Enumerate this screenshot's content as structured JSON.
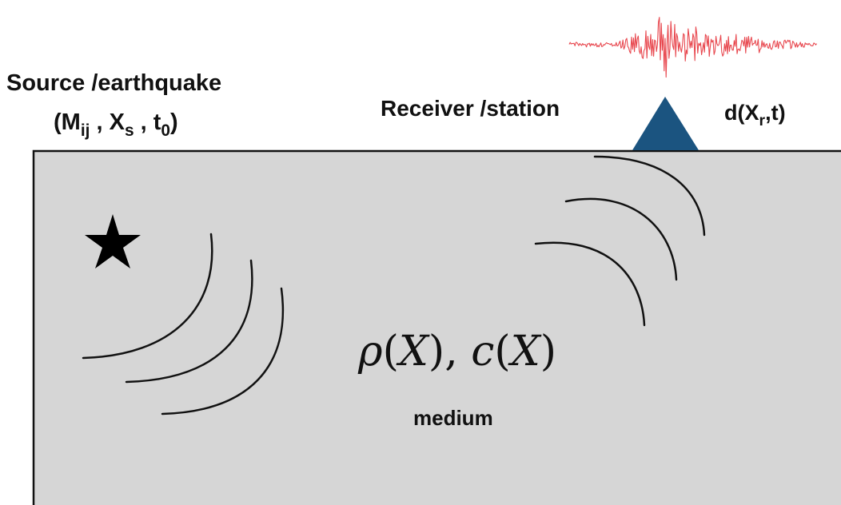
{
  "source": {
    "title": "Source /earthquake",
    "params_open": "(M",
    "params_m_sub": "ij",
    "params_sep1": " , X",
    "params_x_sub": "s",
    "params_sep2": " , t",
    "params_t_sub": "0",
    "params_close": ")",
    "marker_icon": "star-icon"
  },
  "receiver": {
    "title": "Receiver /station",
    "marker_icon": "triangle-station-icon",
    "data_open": "d(X",
    "data_sub": "r",
    "data_close": ",t)",
    "seismogram_icon": "seismogram-trace-icon"
  },
  "medium": {
    "formula_rho": "ρ",
    "formula_open1": "(",
    "formula_x1": "X",
    "formula_mid": "), ",
    "formula_c": "c",
    "formula_open2": "(",
    "formula_x2": "X",
    "formula_close": ")",
    "label": "medium"
  },
  "colors": {
    "medium_fill": "#d6d6d6",
    "outline": "#111111",
    "station": "#1b5480",
    "seismogram": "#e8484f",
    "star": "#000000"
  }
}
